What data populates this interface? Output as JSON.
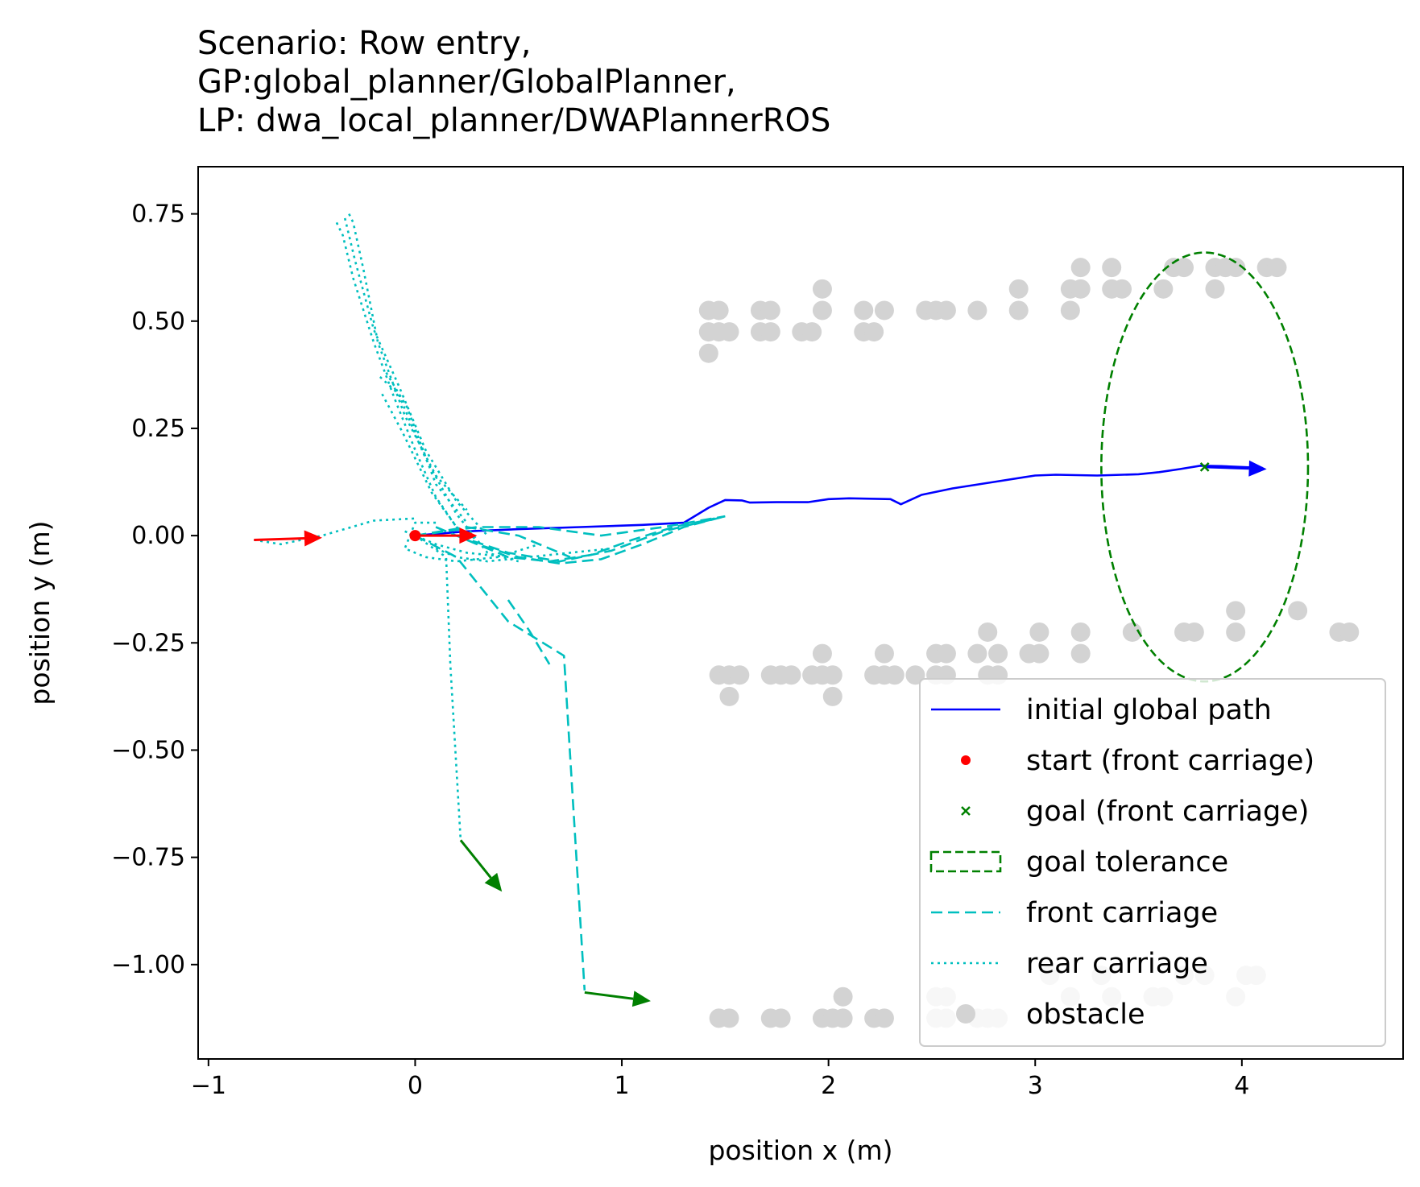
{
  "chart_data": {
    "type": "line",
    "title_lines": [
      "Scenario: Row entry,",
      "GP:global_planner/GlobalPlanner,",
      "LP: dwa_local_planner/DWAPlannerROS"
    ],
    "xlabel": "position x (m)",
    "ylabel": "position y (m)",
    "xlim": [
      -1.05,
      4.78
    ],
    "ylim": [
      -1.22,
      0.86
    ],
    "xticks": [
      -1,
      0,
      1,
      2,
      3,
      4
    ],
    "xtick_labels": [
      "−1",
      "0",
      "1",
      "2",
      "3",
      "4"
    ],
    "yticks": [
      0.75,
      0.5,
      0.25,
      0.0,
      -0.25,
      -0.5,
      -0.75,
      -1.0
    ],
    "ytick_labels": [
      "0.75",
      "0.50",
      "0.25",
      "0.00",
      "−0.25",
      "−0.50",
      "−0.75",
      "−1.00"
    ],
    "grid": false,
    "legend_placement": "lower right",
    "legend": [
      {
        "label": "initial global path",
        "kind": "line",
        "color": "#0000ff",
        "dash": "solid"
      },
      {
        "label": "start (front carriage)",
        "kind": "dot",
        "color": "#ff0000"
      },
      {
        "label": "goal (front carriage)",
        "kind": "x",
        "color": "#008000"
      },
      {
        "label": "goal tolerance",
        "kind": "patch",
        "color": "#008000",
        "dash": "dashed"
      },
      {
        "label": "front carriage",
        "kind": "line",
        "color": "#00bfbf",
        "dash": "dashed"
      },
      {
        "label": "rear carriage",
        "kind": "line",
        "color": "#00bfbf",
        "dash": "dotted"
      },
      {
        "label": "obstacle",
        "kind": "dot",
        "color": "#d3d3d3"
      }
    ],
    "series": [
      {
        "name": "initial global path",
        "color": "#0000ff",
        "style": "solid",
        "x": [
          0.0,
          0.25,
          0.5,
          0.8,
          1.1,
          1.3,
          1.42,
          1.5,
          1.58,
          1.62,
          1.75,
          1.9,
          2.0,
          2.1,
          2.2,
          2.3,
          2.35,
          2.45,
          2.6,
          2.8,
          3.0,
          3.1,
          3.3,
          3.5,
          3.6,
          3.7,
          3.8,
          3.9,
          4.0,
          4.1
        ],
        "y": [
          0.0,
          0.01,
          0.015,
          0.02,
          0.025,
          0.03,
          0.065,
          0.083,
          0.082,
          0.077,
          0.078,
          0.078,
          0.085,
          0.087,
          0.086,
          0.085,
          0.073,
          0.095,
          0.11,
          0.125,
          0.14,
          0.142,
          0.14,
          0.143,
          0.148,
          0.155,
          0.163,
          0.162,
          0.16,
          0.158
        ]
      },
      {
        "name": "front carriage",
        "color": "#00bfbf",
        "style": "dashed",
        "paths": [
          {
            "x": [
              0.0,
              0.3,
              0.6,
              0.9,
              1.2,
              1.5
            ],
            "y": [
              0.0,
              0.02,
              0.02,
              0.0,
              0.02,
              0.045
            ]
          },
          {
            "x": [
              0.1,
              0.3,
              0.5,
              0.7,
              0.9,
              1.1,
              1.3,
              1.5
            ],
            "y": [
              0.02,
              -0.02,
              -0.05,
              -0.065,
              -0.055,
              -0.02,
              0.02,
              0.045
            ]
          },
          {
            "x": [
              0.2,
              0.45,
              0.7,
              0.95,
              1.2,
              1.5
            ],
            "y": [
              0.0,
              -0.04,
              -0.06,
              -0.035,
              0.01,
              0.045
            ]
          },
          {
            "x": [
              0.25,
              0.45,
              0.65,
              0.85,
              1.05,
              1.25,
              1.45
            ],
            "y": [
              -0.01,
              -0.05,
              -0.06,
              -0.045,
              -0.01,
              0.02,
              0.04
            ]
          },
          {
            "x": [
              0.45,
              0.55,
              0.65
            ],
            "y": [
              -0.15,
              -0.22,
              -0.3
            ]
          },
          {
            "x": [
              0.0,
              0.2,
              0.45,
              0.72,
              0.82
            ],
            "y": [
              0.0,
              -0.05,
              -0.2,
              -0.28,
              -1.06
            ]
          },
          {
            "x": [
              0.0,
              0.25,
              0.5,
              0.75
            ],
            "y": [
              0.0,
              0.02,
              0.0,
              -0.05
            ]
          }
        ]
      },
      {
        "name": "rear carriage",
        "color": "#00bfbf",
        "style": "dotted",
        "paths": [
          {
            "x": [
              -0.78,
              -0.65,
              -0.45,
              -0.2,
              0.0
            ],
            "y": [
              -0.01,
              -0.02,
              0.0,
              0.035,
              0.04
            ]
          },
          {
            "x": [
              0.1,
              0.0,
              -0.05,
              0.05,
              0.2,
              0.4,
              0.6
            ],
            "y": [
              0.03,
              0.03,
              -0.03,
              -0.05,
              -0.06,
              -0.05,
              -0.02
            ]
          },
          {
            "x": [
              -0.38,
              -0.35,
              -0.3,
              -0.2,
              -0.1,
              0.0,
              0.1,
              0.2,
              0.3
            ],
            "y": [
              0.73,
              0.7,
              0.6,
              0.45,
              0.32,
              0.2,
              0.09,
              0.02,
              -0.01
            ]
          },
          {
            "x": [
              -0.32,
              -0.3,
              -0.25,
              -0.18,
              -0.05,
              0.1,
              0.25
            ],
            "y": [
              0.75,
              0.73,
              0.62,
              0.45,
              0.28,
              0.14,
              0.06
            ]
          },
          {
            "x": [
              -0.34,
              -0.29,
              -0.2,
              -0.08,
              0.05,
              0.2,
              0.35
            ],
            "y": [
              0.74,
              0.64,
              0.48,
              0.35,
              0.2,
              0.08,
              0.0
            ]
          },
          {
            "x": [
              -0.17,
              -0.08,
              0.05,
              0.2,
              0.35,
              0.5
            ],
            "y": [
              0.37,
              0.33,
              0.18,
              0.05,
              -0.04,
              -0.06
            ]
          },
          {
            "x": [
              -0.14,
              -0.04,
              0.1,
              0.25
            ],
            "y": [
              0.38,
              0.3,
              0.12,
              0.03
            ]
          },
          {
            "x": [
              -0.16,
              -0.06,
              0.08,
              0.2
            ],
            "y": [
              0.33,
              0.24,
              0.1,
              0.02
            ]
          },
          {
            "x": [
              0.1,
              0.2,
              0.35,
              0.55,
              0.75,
              0.95
            ],
            "y": [
              -0.03,
              -0.05,
              -0.06,
              -0.05,
              -0.04,
              -0.03
            ]
          },
          {
            "x": [
              0.0,
              0.15,
              0.17,
              0.22
            ],
            "y": [
              0.0,
              -0.05,
              -0.3,
              -0.71
            ]
          },
          {
            "x": [
              -0.05,
              0.1,
              0.25,
              0.45
            ],
            "y": [
              0.01,
              -0.02,
              -0.04,
              -0.05
            ]
          }
        ]
      }
    ],
    "start": {
      "x": 0.0,
      "y": 0.0,
      "color": "#ff0000"
    },
    "goal": {
      "x": 3.82,
      "y": 0.16,
      "color": "#008000"
    },
    "goal_tolerance": {
      "cx": 3.82,
      "cy": 0.16,
      "rx": 0.5,
      "ry": 0.5,
      "color": "#008000"
    },
    "arrows": [
      {
        "x1": -0.78,
        "y1": -0.01,
        "x2": -0.45,
        "y2": -0.005,
        "color": "#ff0000"
      },
      {
        "x1": 0.0,
        "y1": 0.0,
        "x2": 0.3,
        "y2": 0.0,
        "color": "#ff0000"
      },
      {
        "x1": 3.82,
        "y1": 0.16,
        "x2": 4.12,
        "y2": 0.155,
        "color": "#0000ff"
      },
      {
        "x1": 0.22,
        "y1": -0.71,
        "x2": 0.42,
        "y2": -0.83,
        "color": "#008000"
      },
      {
        "x1": 0.82,
        "y1": -1.065,
        "x2": 1.14,
        "y2": -1.085,
        "color": "#008000"
      }
    ],
    "obstacles": {
      "color": "#d3d3d3",
      "points": [
        [
          1.42,
          0.525
        ],
        [
          1.47,
          0.525
        ],
        [
          1.42,
          0.475
        ],
        [
          1.47,
          0.475
        ],
        [
          1.52,
          0.475
        ],
        [
          1.42,
          0.425
        ],
        [
          1.67,
          0.525
        ],
        [
          1.72,
          0.525
        ],
        [
          1.67,
          0.475
        ],
        [
          1.72,
          0.475
        ],
        [
          1.87,
          0.475
        ],
        [
          1.92,
          0.475
        ],
        [
          1.97,
          0.525
        ],
        [
          1.97,
          0.575
        ],
        [
          2.17,
          0.525
        ],
        [
          2.27,
          0.525
        ],
        [
          2.17,
          0.475
        ],
        [
          2.22,
          0.475
        ],
        [
          2.47,
          0.525
        ],
        [
          2.52,
          0.525
        ],
        [
          2.57,
          0.525
        ],
        [
          2.72,
          0.525
        ],
        [
          2.92,
          0.525
        ],
        [
          2.92,
          0.575
        ],
        [
          3.17,
          0.525
        ],
        [
          3.17,
          0.575
        ],
        [
          3.22,
          0.575
        ],
        [
          3.22,
          0.625
        ],
        [
          3.37,
          0.575
        ],
        [
          3.42,
          0.575
        ],
        [
          3.37,
          0.625
        ],
        [
          3.62,
          0.575
        ],
        [
          3.67,
          0.625
        ],
        [
          3.72,
          0.625
        ],
        [
          3.87,
          0.625
        ],
        [
          3.92,
          0.625
        ],
        [
          3.97,
          0.625
        ],
        [
          3.87,
          0.575
        ],
        [
          4.12,
          0.625
        ],
        [
          4.17,
          0.625
        ],
        [
          1.47,
          -0.325
        ],
        [
          1.52,
          -0.325
        ],
        [
          1.57,
          -0.325
        ],
        [
          1.52,
          -0.375
        ],
        [
          1.72,
          -0.325
        ],
        [
          1.77,
          -0.325
        ],
        [
          1.82,
          -0.325
        ],
        [
          1.97,
          -0.275
        ],
        [
          1.97,
          -0.325
        ],
        [
          1.92,
          -0.325
        ],
        [
          2.02,
          -0.325
        ],
        [
          2.02,
          -0.375
        ],
        [
          2.22,
          -0.325
        ],
        [
          2.27,
          -0.325
        ],
        [
          2.27,
          -0.275
        ],
        [
          2.32,
          -0.325
        ],
        [
          2.42,
          -0.325
        ],
        [
          2.52,
          -0.275
        ],
        [
          2.57,
          -0.275
        ],
        [
          2.52,
          -0.325
        ],
        [
          2.57,
          -0.325
        ],
        [
          2.72,
          -0.275
        ],
        [
          2.77,
          -0.225
        ],
        [
          2.82,
          -0.275
        ],
        [
          2.77,
          -0.325
        ],
        [
          2.82,
          -0.325
        ],
        [
          2.97,
          -0.275
        ],
        [
          3.02,
          -0.225
        ],
        [
          3.02,
          -0.275
        ],
        [
          3.22,
          -0.225
        ],
        [
          3.22,
          -0.275
        ],
        [
          3.47,
          -0.225
        ],
        [
          3.72,
          -0.225
        ],
        [
          3.77,
          -0.225
        ],
        [
          3.97,
          -0.175
        ],
        [
          3.97,
          -0.225
        ],
        [
          4.27,
          -0.175
        ],
        [
          4.47,
          -0.225
        ],
        [
          4.52,
          -0.225
        ],
        [
          1.47,
          -1.125
        ],
        [
          1.52,
          -1.125
        ],
        [
          1.72,
          -1.125
        ],
        [
          1.77,
          -1.125
        ],
        [
          1.97,
          -1.125
        ],
        [
          2.02,
          -1.125
        ],
        [
          2.07,
          -1.125
        ],
        [
          2.07,
          -1.075
        ],
        [
          2.22,
          -1.125
        ],
        [
          2.27,
          -1.125
        ],
        [
          2.52,
          -1.125
        ],
        [
          2.57,
          -1.125
        ],
        [
          2.52,
          -1.075
        ],
        [
          2.57,
          -1.075
        ],
        [
          2.72,
          -1.125
        ],
        [
          2.77,
          -1.125
        ],
        [
          2.82,
          -1.125
        ],
        [
          3.07,
          -1.025
        ],
        [
          3.17,
          -1.075
        ],
        [
          3.32,
          -1.025
        ],
        [
          3.37,
          -1.075
        ],
        [
          3.57,
          -1.075
        ],
        [
          3.62,
          -1.075
        ],
        [
          3.72,
          -1.025
        ],
        [
          3.82,
          -1.025
        ],
        [
          3.97,
          -1.075
        ],
        [
          4.02,
          -1.025
        ],
        [
          4.07,
          -1.025
        ]
      ]
    }
  }
}
